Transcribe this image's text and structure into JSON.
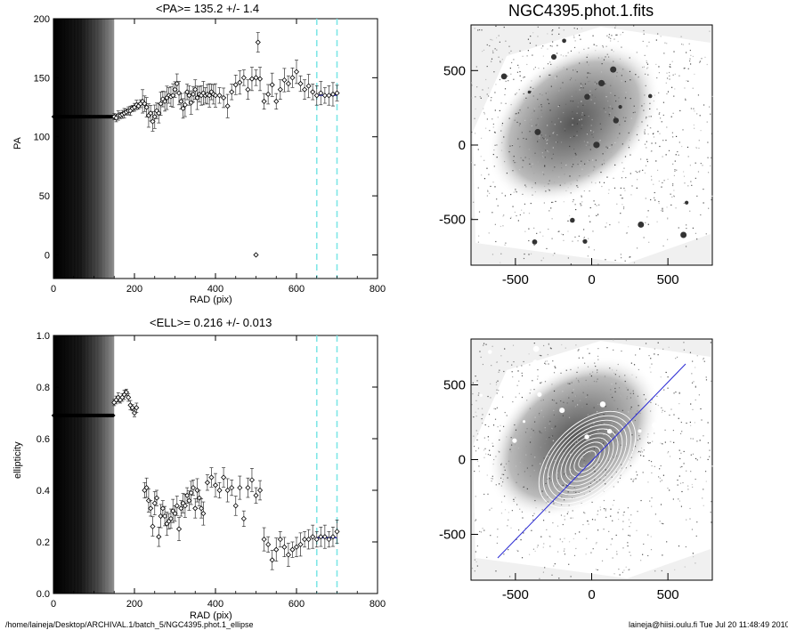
{
  "colors": {
    "fit_line": "#2a2ad4",
    "range_marker": "#7fe6e6",
    "points": "#000000",
    "image_bg": "#dcdcdc"
  },
  "footer": {
    "path": "/home/laineja/Desktop/ARCHIVAL.1/batch_5/NGC4395.phot.1_ellipse",
    "stamp": "laineja@hiisi.oulu.fi  Tue Jul 20 11:48:49 2010"
  },
  "images": {
    "top_title": "NGC4395.phot.1.fits",
    "xticks": [
      "-500",
      "0",
      "500"
    ],
    "yticks": [
      "500",
      "0",
      "-500"
    ]
  },
  "chart_data": [
    {
      "type": "scatter",
      "title": "<PA>= 135.2 +/-   1.4",
      "xlabel": "RAD (pix)",
      "ylabel": "PA",
      "xlim": [
        0,
        800
      ],
      "ylim": [
        -20,
        200
      ],
      "xticks": [
        "0",
        "200",
        "400",
        "600",
        "800"
      ],
      "xtick_values": [
        0,
        200,
        400,
        600,
        800
      ],
      "yticks": [
        "0",
        "50",
        "100",
        "150",
        "200"
      ],
      "ytick_values": [
        0,
        50,
        100,
        150,
        200
      ],
      "fit_range": [
        650,
        700
      ],
      "mean": 135.2,
      "points": [
        [
          150,
          117
        ],
        [
          155,
          116
        ],
        [
          160,
          118
        ],
        [
          165,
          118
        ],
        [
          170,
          119
        ],
        [
          175,
          120
        ],
        [
          180,
          121
        ],
        [
          185,
          122
        ],
        [
          190,
          122
        ],
        [
          195,
          124
        ],
        [
          200,
          125
        ],
        [
          205,
          127
        ],
        [
          210,
          126
        ],
        [
          215,
          128
        ],
        [
          220,
          130
        ],
        [
          225,
          128
        ],
        [
          230,
          125
        ],
        [
          235,
          118
        ],
        [
          240,
          120
        ],
        [
          245,
          113
        ],
        [
          250,
          117
        ],
        [
          255,
          122
        ],
        [
          260,
          120
        ],
        [
          265,
          128
        ],
        [
          270,
          132
        ],
        [
          275,
          130
        ],
        [
          280,
          133
        ],
        [
          285,
          135
        ],
        [
          290,
          134
        ],
        [
          295,
          135
        ],
        [
          300,
          140
        ],
        [
          305,
          145
        ],
        [
          310,
          137
        ],
        [
          315,
          130
        ],
        [
          320,
          124
        ],
        [
          325,
          127
        ],
        [
          330,
          138
        ],
        [
          335,
          135
        ],
        [
          340,
          129
        ],
        [
          345,
          136
        ],
        [
          350,
          140
        ],
        [
          355,
          133
        ],
        [
          360,
          136
        ],
        [
          365,
          135
        ],
        [
          370,
          137
        ],
        [
          375,
          135
        ],
        [
          380,
          136
        ],
        [
          385,
          135
        ],
        [
          390,
          138
        ],
        [
          395,
          136
        ],
        [
          400,
          135
        ],
        [
          410,
          135
        ],
        [
          420,
          133
        ],
        [
          430,
          126
        ],
        [
          440,
          138
        ],
        [
          450,
          144
        ],
        [
          460,
          146
        ],
        [
          470,
          150
        ],
        [
          480,
          140
        ],
        [
          490,
          149
        ],
        [
          500,
          150
        ],
        [
          505,
          180
        ],
        [
          510,
          149
        ],
        [
          520,
          130
        ],
        [
          530,
          136
        ],
        [
          540,
          144
        ],
        [
          550,
          130
        ],
        [
          560,
          140
        ],
        [
          570,
          148
        ],
        [
          580,
          145
        ],
        [
          590,
          150
        ],
        [
          600,
          155
        ],
        [
          610,
          145
        ],
        [
          620,
          140
        ],
        [
          630,
          143
        ],
        [
          640,
          138
        ],
        [
          650,
          135
        ],
        [
          660,
          137
        ],
        [
          670,
          135
        ],
        [
          680,
          135
        ],
        [
          690,
          136
        ],
        [
          700,
          137
        ]
      ],
      "outlier": [
        500,
        0
      ],
      "inner_constant": 117
    },
    {
      "type": "scatter",
      "title": "<ELL>= 0.216 +/-  0.013",
      "xlabel": "RAD (pix)",
      "ylabel": "ellipticity",
      "xlim": [
        0,
        800
      ],
      "ylim": [
        0.0,
        1.0
      ],
      "xticks": [
        "0",
        "200",
        "400",
        "600",
        "800"
      ],
      "xtick_values": [
        0,
        200,
        400,
        600,
        800
      ],
      "yticks": [
        "0.0",
        "0.2",
        "0.4",
        "0.6",
        "0.8",
        "1.0"
      ],
      "ytick_values": [
        0.0,
        0.2,
        0.4,
        0.6,
        0.8,
        1.0
      ],
      "fit_range": [
        650,
        700
      ],
      "mean": 0.216,
      "points": [
        [
          150,
          0.74
        ],
        [
          155,
          0.75
        ],
        [
          160,
          0.76
        ],
        [
          165,
          0.75
        ],
        [
          170,
          0.76
        ],
        [
          175,
          0.77
        ],
        [
          180,
          0.78
        ],
        [
          185,
          0.76
        ],
        [
          190,
          0.73
        ],
        [
          195,
          0.72
        ],
        [
          200,
          0.7
        ],
        [
          205,
          0.72
        ],
        [
          225,
          0.4
        ],
        [
          230,
          0.41
        ],
        [
          235,
          0.36
        ],
        [
          240,
          0.33
        ],
        [
          245,
          0.26
        ],
        [
          250,
          0.35
        ],
        [
          255,
          0.37
        ],
        [
          260,
          0.22
        ],
        [
          265,
          0.3
        ],
        [
          270,
          0.33
        ],
        [
          275,
          0.3
        ],
        [
          280,
          0.27
        ],
        [
          285,
          0.28
        ],
        [
          290,
          0.29
        ],
        [
          295,
          0.32
        ],
        [
          300,
          0.31
        ],
        [
          305,
          0.34
        ],
        [
          310,
          0.25
        ],
        [
          315,
          0.33
        ],
        [
          320,
          0.35
        ],
        [
          325,
          0.34
        ],
        [
          330,
          0.38
        ],
        [
          335,
          0.36
        ],
        [
          340,
          0.39
        ],
        [
          345,
          0.41
        ],
        [
          350,
          0.33
        ],
        [
          355,
          0.4
        ],
        [
          360,
          0.37
        ],
        [
          365,
          0.33
        ],
        [
          370,
          0.31
        ],
        [
          380,
          0.43
        ],
        [
          390,
          0.45
        ],
        [
          400,
          0.42
        ],
        [
          410,
          0.4
        ],
        [
          420,
          0.45
        ],
        [
          430,
          0.4
        ],
        [
          440,
          0.41
        ],
        [
          450,
          0.34
        ],
        [
          460,
          0.41
        ],
        [
          470,
          0.29
        ],
        [
          480,
          0.41
        ],
        [
          490,
          0.44
        ],
        [
          500,
          0.38
        ],
        [
          510,
          0.4
        ],
        [
          520,
          0.21
        ],
        [
          530,
          0.19
        ],
        [
          540,
          0.13
        ],
        [
          550,
          0.17
        ],
        [
          560,
          0.21
        ],
        [
          570,
          0.18
        ],
        [
          580,
          0.15
        ],
        [
          590,
          0.17
        ],
        [
          600,
          0.18
        ],
        [
          610,
          0.19
        ],
        [
          620,
          0.21
        ],
        [
          630,
          0.21
        ],
        [
          640,
          0.22
        ],
        [
          650,
          0.21
        ],
        [
          660,
          0.22
        ],
        [
          670,
          0.22
        ],
        [
          680,
          0.21
        ],
        [
          690,
          0.22
        ],
        [
          700,
          0.24
        ]
      ],
      "inner_constant": 0.69
    }
  ]
}
